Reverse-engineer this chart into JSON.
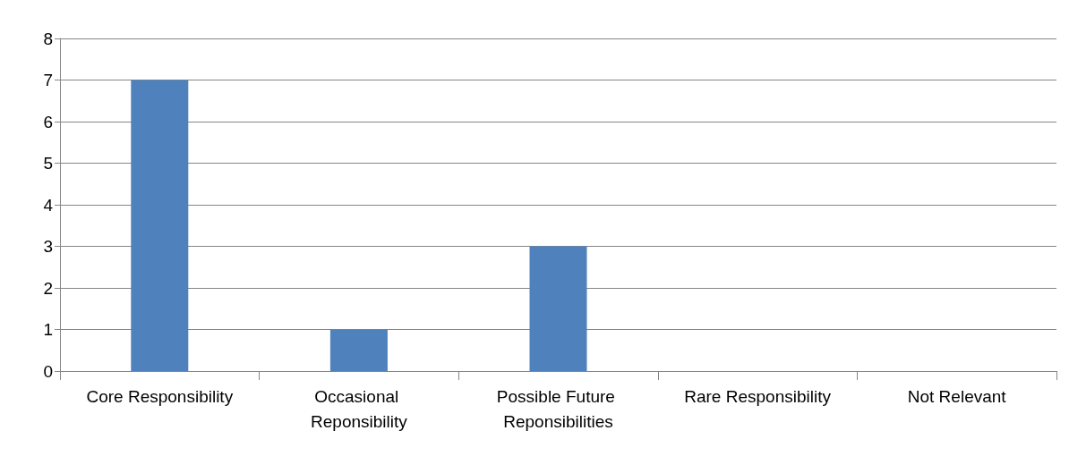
{
  "chart_data": {
    "type": "bar",
    "categories": [
      "Core Responsibility",
      "Occasional Reponsibility",
      "Possible Future Reponsibilities",
      "Rare Responsibility",
      "Not Relevant"
    ],
    "values": [
      7,
      1,
      3,
      0,
      0
    ],
    "color": "#4f81bd",
    "ylim": [
      0,
      8
    ],
    "yticks": [
      0,
      1,
      2,
      3,
      4,
      5,
      6,
      7,
      8
    ],
    "grid": "y"
  }
}
